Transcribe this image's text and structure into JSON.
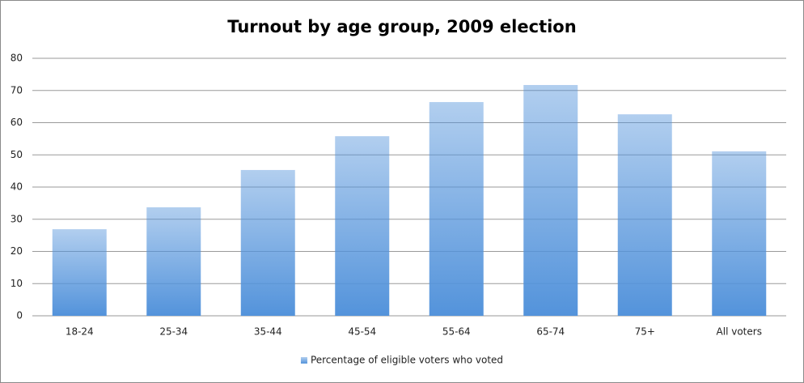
{
  "chart_data": {
    "type": "bar",
    "title": "Turnout by age group, 2009 election",
    "categories": [
      "18-24",
      "25-34",
      "35-44",
      "45-54",
      "55-64",
      "65-74",
      "75+",
      "All voters"
    ],
    "series": [
      {
        "name": "Percentage of eligible voters who voted",
        "color": "#5393db",
        "values": [
          26.9,
          33.7,
          45.3,
          55.8,
          66.4,
          71.7,
          62.6,
          51.1
        ]
      }
    ],
    "ylim": [
      0,
      80
    ],
    "yticks": [
      0,
      10,
      20,
      30,
      40,
      50,
      60,
      70,
      80
    ],
    "grid": true,
    "legend": "bottom"
  }
}
